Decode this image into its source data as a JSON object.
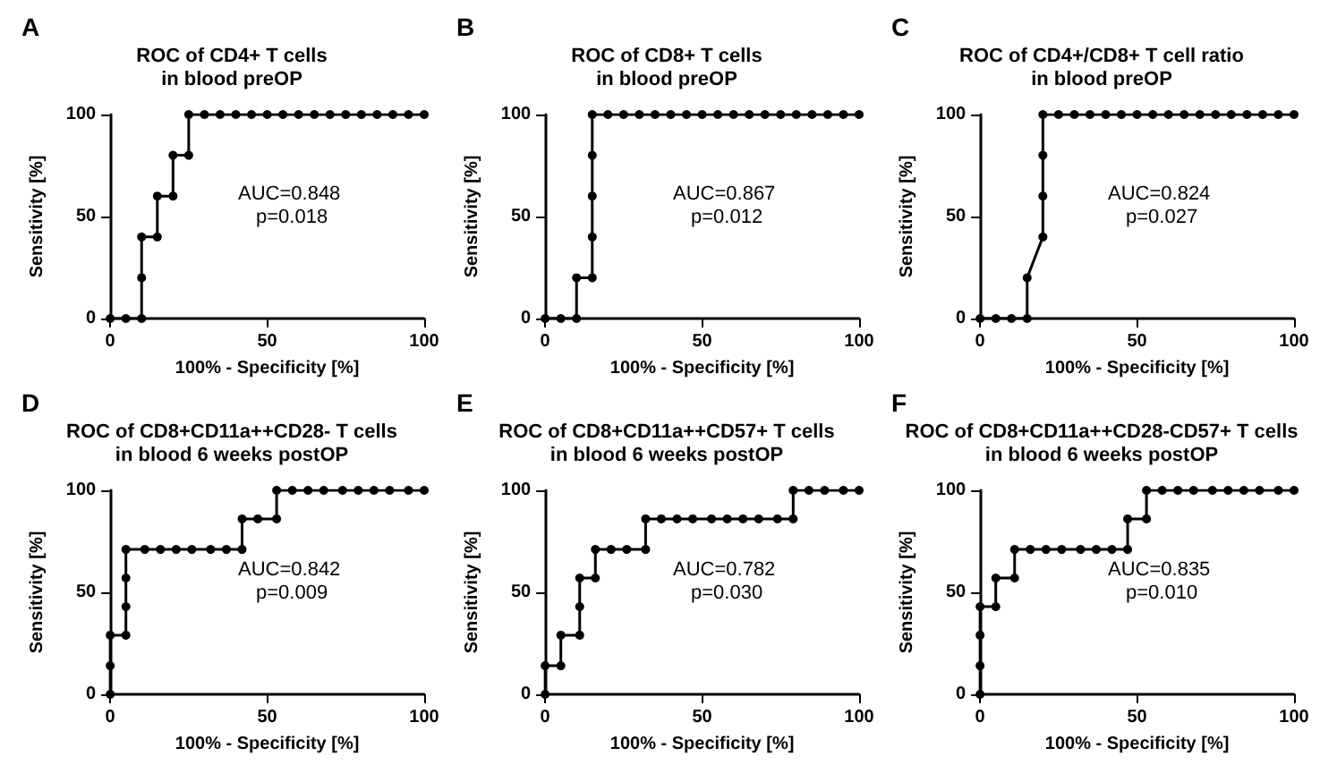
{
  "chart_data": [
    {
      "type": "line",
      "title": "ROC of CD4+ T cells\nin blood preOP",
      "xlabel": "100% - Specificity [%]",
      "ylabel": "Sensitivity [%]",
      "annotations": [
        "A",
        "AUC=0.848",
        "p=0.018"
      ],
      "xlim": [
        0,
        100
      ],
      "xticks": [
        0,
        50,
        100
      ],
      "ylim": [
        0,
        100
      ],
      "yticks": [
        0,
        50,
        100
      ],
      "grid": false,
      "marker": "circle",
      "line_style": "solid",
      "series": [
        {
          "color": "#000000",
          "x": [
            0,
            5,
            10,
            10,
            10,
            15,
            15,
            20,
            20,
            25,
            25,
            30,
            35,
            40,
            45,
            50,
            55,
            60,
            65,
            70,
            75,
            80,
            85,
            90,
            95,
            100
          ],
          "values": [
            0,
            0,
            0,
            20,
            40,
            40,
            60,
            60,
            80,
            80,
            100,
            100,
            100,
            100,
            100,
            100,
            100,
            100,
            100,
            100,
            100,
            100,
            100,
            100,
            100,
            100
          ]
        }
      ]
    },
    {
      "type": "line",
      "title": "ROC of CD8+ T cells\nin blood preOP",
      "xlabel": "100% - Specificity [%]",
      "ylabel": "Sensitivity [%]",
      "annotations": [
        "B",
        "AUC=0.867",
        "p=0.012"
      ],
      "xlim": [
        0,
        100
      ],
      "xticks": [
        0,
        50,
        100
      ],
      "ylim": [
        0,
        100
      ],
      "yticks": [
        0,
        50,
        100
      ],
      "grid": false,
      "marker": "circle",
      "line_style": "solid",
      "series": [
        {
          "color": "#000000",
          "x": [
            0,
            5,
            10,
            10,
            15,
            15,
            15,
            15,
            15,
            20,
            25,
            30,
            35,
            40,
            45,
            50,
            55,
            60,
            65,
            70,
            75,
            80,
            85,
            90,
            95,
            100
          ],
          "values": [
            0,
            0,
            0,
            20,
            20,
            40,
            60,
            80,
            100,
            100,
            100,
            100,
            100,
            100,
            100,
            100,
            100,
            100,
            100,
            100,
            100,
            100,
            100,
            100,
            100,
            100
          ]
        }
      ]
    },
    {
      "type": "line",
      "title": "ROC of CD4+/CD8+ T cell ratio\nin blood preOP",
      "xlabel": "100% - Specificity [%]",
      "ylabel": "Sensitivity [%]",
      "annotations": [
        "C",
        "AUC=0.824",
        "p=0.027"
      ],
      "xlim": [
        0,
        100
      ],
      "xticks": [
        0,
        50,
        100
      ],
      "ylim": [
        0,
        100
      ],
      "yticks": [
        0,
        50,
        100
      ],
      "grid": false,
      "marker": "circle",
      "line_style": "solid",
      "series": [
        {
          "color": "#000000",
          "x": [
            0,
            5,
            10,
            15,
            15,
            20,
            20,
            20,
            20,
            25,
            30,
            35,
            40,
            45,
            50,
            55,
            60,
            65,
            70,
            75,
            80,
            85,
            90,
            95,
            100
          ],
          "values": [
            0,
            0,
            0,
            0,
            20,
            40,
            60,
            80,
            100,
            100,
            100,
            100,
            100,
            100,
            100,
            100,
            100,
            100,
            100,
            100,
            100,
            100,
            100,
            100,
            100
          ]
        }
      ]
    },
    {
      "type": "line",
      "title": "ROC of CD8+CD11a++CD28- T cells\nin blood 6 weeks postOP",
      "xlabel": "100% - Specificity [%]",
      "ylabel": "Sensitivity [%]",
      "annotations": [
        "D",
        "AUC=0.842",
        "p=0.009"
      ],
      "xlim": [
        0,
        100
      ],
      "xticks": [
        0,
        50,
        100
      ],
      "ylim": [
        0,
        100
      ],
      "yticks": [
        0,
        50,
        100
      ],
      "grid": false,
      "marker": "circle",
      "line_style": "solid",
      "series": [
        {
          "color": "#000000",
          "x": [
            0,
            0,
            0,
            5,
            5,
            5,
            5,
            11,
            16,
            21,
            26,
            32,
            37,
            42,
            42,
            47,
            53,
            53,
            58,
            63,
            68,
            74,
            79,
            84,
            89,
            95,
            100
          ],
          "values": [
            0,
            14,
            29,
            29,
            43,
            57,
            71,
            71,
            71,
            71,
            71,
            71,
            71,
            71,
            86,
            86,
            86,
            100,
            100,
            100,
            100,
            100,
            100,
            100,
            100,
            100,
            100
          ]
        }
      ]
    },
    {
      "type": "line",
      "title": "ROC of CD8+CD11a++CD57+ T cells\nin blood 6 weeks postOP",
      "xlabel": "100% - Specificity [%]",
      "ylabel": "Sensitivity [%]",
      "annotations": [
        "E",
        "AUC=0.782",
        "p=0.030"
      ],
      "xlim": [
        0,
        100
      ],
      "xticks": [
        0,
        50,
        100
      ],
      "ylim": [
        0,
        100
      ],
      "yticks": [
        0,
        50,
        100
      ],
      "grid": false,
      "marker": "circle",
      "line_style": "solid",
      "series": [
        {
          "color": "#000000",
          "x": [
            0,
            0,
            5,
            5,
            11,
            11,
            11,
            16,
            16,
            21,
            26,
            32,
            32,
            37,
            42,
            47,
            53,
            58,
            63,
            68,
            74,
            79,
            79,
            84,
            89,
            95,
            100
          ],
          "values": [
            0,
            14,
            14,
            29,
            29,
            43,
            57,
            57,
            71,
            71,
            71,
            71,
            86,
            86,
            86,
            86,
            86,
            86,
            86,
            86,
            86,
            86,
            100,
            100,
            100,
            100,
            100
          ]
        }
      ]
    },
    {
      "type": "line",
      "title": "ROC of CD8+CD11a++CD28-CD57+ T cells\nin blood 6 weeks postOP",
      "xlabel": "100% - Specificity [%]",
      "ylabel": "Sensitivity [%]",
      "annotations": [
        "F",
        "AUC=0.835",
        "p=0.010"
      ],
      "xlim": [
        0,
        100
      ],
      "xticks": [
        0,
        50,
        100
      ],
      "ylim": [
        0,
        100
      ],
      "yticks": [
        0,
        50,
        100
      ],
      "grid": false,
      "marker": "circle",
      "line_style": "solid",
      "series": [
        {
          "color": "#000000",
          "x": [
            0,
            0,
            0,
            0,
            5,
            5,
            11,
            11,
            16,
            21,
            26,
            32,
            37,
            42,
            47,
            47,
            53,
            53,
            58,
            63,
            68,
            74,
            79,
            84,
            89,
            95,
            100
          ],
          "values": [
            0,
            14,
            29,
            43,
            43,
            57,
            57,
            71,
            71,
            71,
            71,
            71,
            71,
            71,
            71,
            86,
            86,
            100,
            100,
            100,
            100,
            100,
            100,
            100,
            100,
            100,
            100
          ]
        }
      ]
    }
  ]
}
